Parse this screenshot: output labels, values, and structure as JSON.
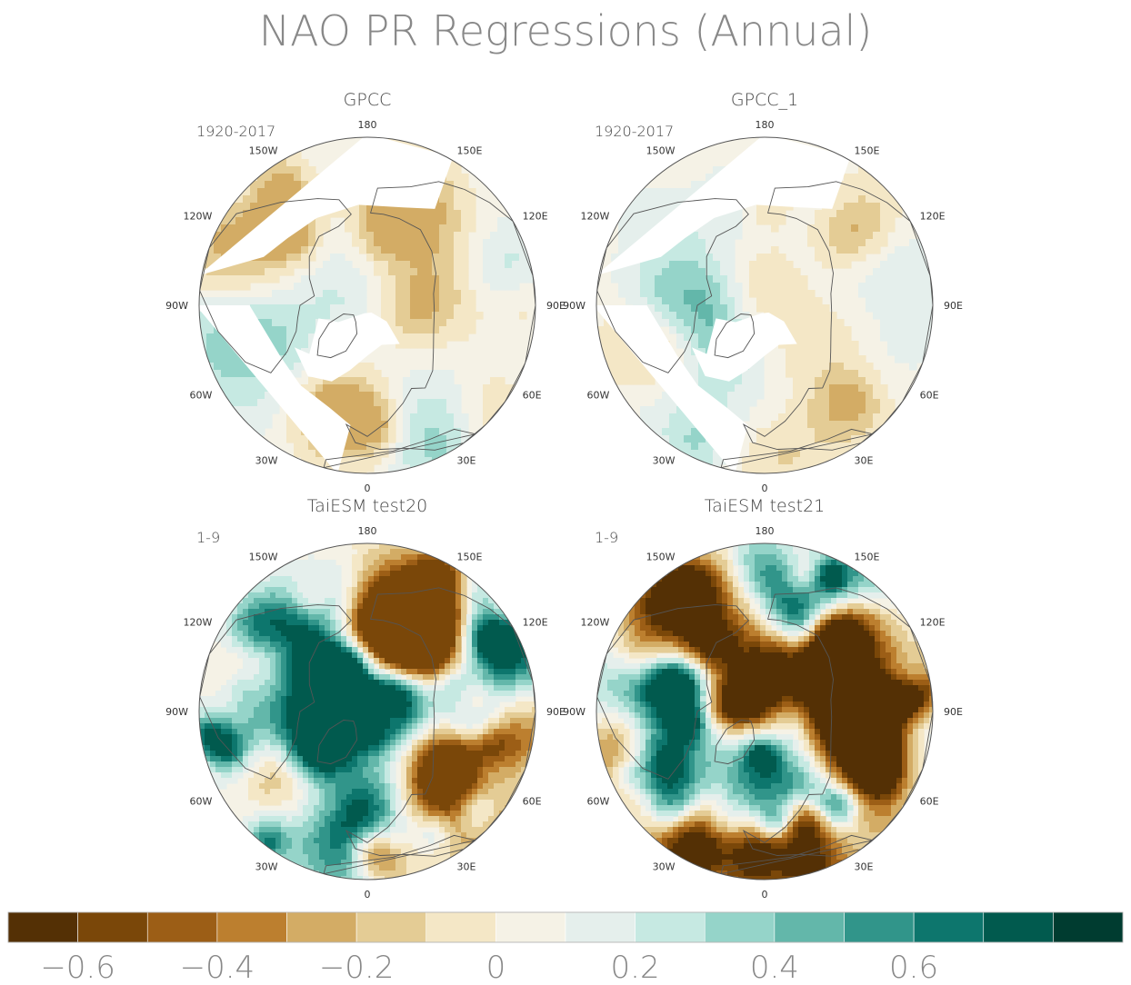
{
  "title": "NAO PR Regressions (Annual)",
  "colors": {
    "levels": [
      "#543005",
      "#7a4709",
      "#9c5e16",
      "#bc7f2f",
      "#d3ac65",
      "#e4cc95",
      "#f4e7c6",
      "#f5f2e6",
      "#e5efec",
      "#c6e9e2",
      "#95d4c9",
      "#63b7aa",
      "#31958a",
      "#0d766d",
      "#015a4e",
      "#003c30"
    ],
    "land_outline": "#555555",
    "circle": "#555555"
  },
  "chart_data": [
    {
      "type": "heatmap",
      "projection": "north-polar-stereographic",
      "title": "GPCC",
      "period": "1920-2017",
      "longitude_labels": [
        "180",
        "150E",
        "120E",
        "90E",
        "60E",
        "30E",
        "0",
        "30W",
        "60W",
        "90W",
        "120W",
        "150W"
      ],
      "pattern": "weak",
      "amplitude_range": [
        -0.3,
        0.4
      ]
    },
    {
      "type": "heatmap",
      "projection": "north-polar-stereographic",
      "title": "GPCC_1",
      "period": "1920-2017",
      "longitude_labels": [
        "180",
        "150E",
        "120E",
        "90E",
        "60E",
        "30E",
        "0",
        "30W",
        "60W",
        "90W",
        "120W",
        "150W"
      ],
      "pattern": "weak",
      "amplitude_range": [
        -0.3,
        0.4
      ]
    },
    {
      "type": "heatmap",
      "projection": "north-polar-stereographic",
      "title": "TaiESM test20",
      "period": "1-9",
      "longitude_labels": [
        "180",
        "150E",
        "120E",
        "90E",
        "60E",
        "30E",
        "0",
        "30W",
        "60W",
        "90W",
        "120W",
        "150W"
      ],
      "pattern": "strong",
      "amplitude_range": [
        -0.6,
        0.7
      ]
    },
    {
      "type": "heatmap",
      "projection": "north-polar-stereographic",
      "title": "TaiESM test21",
      "period": "1-9",
      "longitude_labels": [
        "180",
        "150E",
        "120E",
        "90E",
        "60E",
        "30E",
        "0",
        "30W",
        "60W",
        "90W",
        "120W",
        "150W"
      ],
      "pattern": "strong",
      "amplitude_range": [
        -0.7,
        0.7
      ]
    }
  ],
  "colorbar": {
    "levels": [
      -0.7,
      -0.6,
      -0.5,
      -0.4,
      -0.3,
      -0.2,
      -0.1,
      0,
      0.1,
      0.2,
      0.3,
      0.4,
      0.5,
      0.6,
      0.7,
      0.8
    ],
    "tick_labels": [
      "−0.6",
      "−0.4",
      "−0.2",
      "0",
      "0.2",
      "0.4",
      "0.6"
    ],
    "tick_values": [
      -0.6,
      -0.4,
      -0.2,
      0,
      0.2,
      0.4,
      0.6
    ]
  }
}
